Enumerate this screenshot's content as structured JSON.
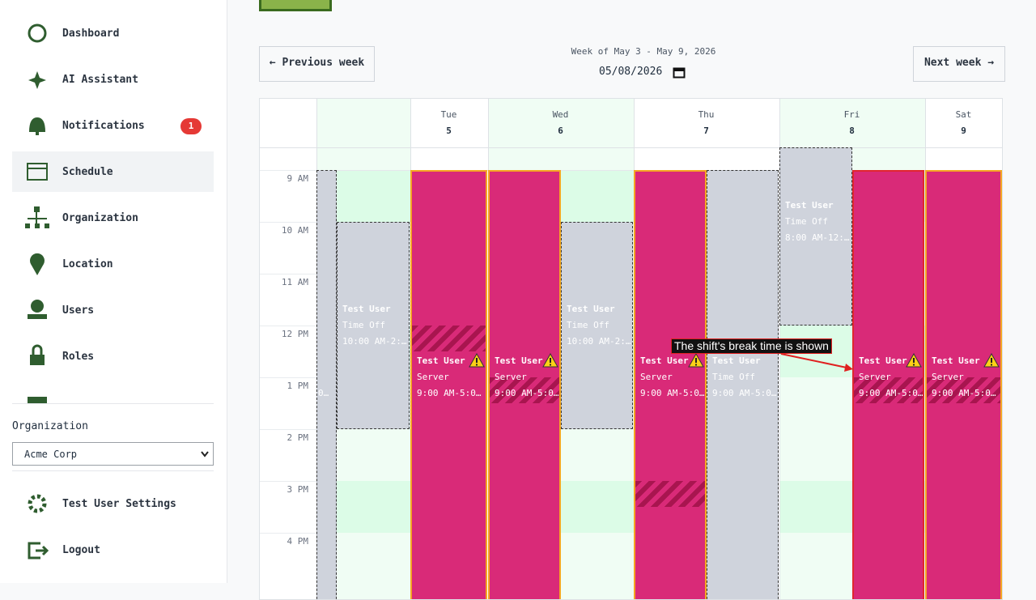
{
  "sidebar": {
    "nav": [
      {
        "label": "Dashboard"
      },
      {
        "label": "AI Assistant"
      },
      {
        "label": "Notifications",
        "badge": "1"
      },
      {
        "label": "Schedule"
      },
      {
        "label": "Organization"
      },
      {
        "label": "Location"
      },
      {
        "label": "Users"
      },
      {
        "label": "Roles"
      }
    ],
    "org_label": "Organization",
    "org_value": "Acme Corp",
    "settings": "Test User Settings",
    "logout": "Logout"
  },
  "toolbar": {
    "prev": "← Previous week",
    "week": "Week of May 3 - May 9, 2026",
    "date": "05/08/2026",
    "next": "Next week →"
  },
  "calendar": {
    "days": [
      {
        "name": "Tue",
        "date": "5"
      },
      {
        "name": "Wed",
        "date": "6"
      },
      {
        "name": "Thu",
        "date": "7"
      },
      {
        "name": "Fri",
        "date": "8"
      },
      {
        "name": "Sat",
        "date": "9"
      }
    ],
    "hours": [
      "9 AM",
      "10 AM",
      "11 AM",
      "12 PM",
      "1 PM",
      "2 PM",
      "3 PM",
      "4 PM"
    ],
    "events": [
      {
        "time": "0…"
      },
      {
        "title": "Test User",
        "subtitle": "Time Off",
        "time": "10:00 AM-2:…"
      },
      {
        "title": "Test User",
        "subtitle": "Server",
        "time": "9:00 AM-5:0…"
      },
      {
        "title": "Test User",
        "subtitle": "Server",
        "time": "9:00 AM-5:0…"
      },
      {
        "title": "Test User",
        "subtitle": "Time Off",
        "time": "10:00 AM-2:…"
      },
      {
        "title": "Test User",
        "subtitle": "Server",
        "time": "9:00 AM-5:0…"
      },
      {
        "title": "Test User",
        "subtitle": "Time Off",
        "time": "9:00 AM-5:0…"
      },
      {
        "title": "Test User",
        "subtitle": "Time Off",
        "time": "8:00 AM-12:…"
      },
      {
        "title": "Test User",
        "subtitle": "Server",
        "time": "9:00 AM-5:0…"
      },
      {
        "title": "Test User",
        "subtitle": "Server",
        "time": "9:00 AM-5:0…"
      }
    ]
  },
  "annotation": "The shift's break time is shown"
}
